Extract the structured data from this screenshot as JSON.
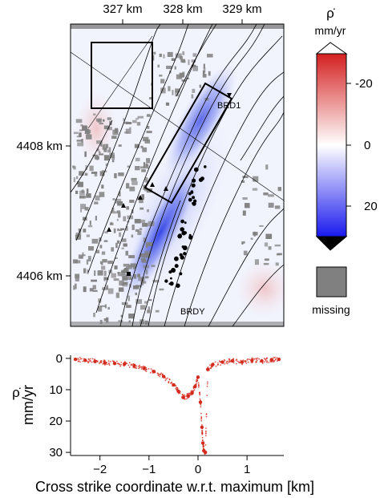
{
  "chart_data": [
    {
      "type": "heatmap",
      "title": "",
      "x_ticks": [
        "327 km",
        "328 km",
        "329 km"
      ],
      "y_ticks": [
        "4408 km",
        "4406 km"
      ],
      "annotations": [
        "BRD1",
        "BRDY"
      ],
      "colorbar": {
        "symbol": "ρ̇",
        "unit": "mm/yr",
        "ticks": [
          "-20",
          "0",
          "20"
        ],
        "range": [
          -28,
          28
        ],
        "colors": {
          "negative": "#d42020",
          "zero": "#ffffff",
          "positive": "#1a1aee"
        },
        "missing_label": "missing",
        "missing_color": "#808080"
      },
      "grid": false
    },
    {
      "type": "scatter",
      "title": "",
      "xlabel": "Cross strike coordinate w.r.t. maximum [km]",
      "ylabel": "mm/yr",
      "ylabel_symbol": "ρ̇",
      "xlim": [
        -2.6,
        1.75
      ],
      "ylim": [
        31,
        -1
      ],
      "x_ticks": [
        -2,
        -1,
        0,
        1
      ],
      "y_ticks": [
        0,
        10,
        20,
        30
      ],
      "color": "#d42a1e",
      "grid": false,
      "series": [
        {
          "x": [
            -2.5,
            -2.3,
            -2.1,
            -1.9,
            -1.7,
            -1.5,
            -1.3,
            -1.1,
            -0.9,
            -0.7,
            -0.5,
            -0.4,
            -0.3,
            -0.2,
            -0.12,
            -0.06,
            0.0,
            0.05,
            0.08,
            0.1,
            0.12,
            0.15,
            0.2,
            0.3,
            0.5,
            0.7,
            0.9,
            1.1,
            1.3,
            1.5,
            1.65
          ],
          "y": [
            0.3,
            0.6,
            1.0,
            1.4,
            1.6,
            1.8,
            2.3,
            3.2,
            4.2,
            5.8,
            8.5,
            10.5,
            12.5,
            12.0,
            11.0,
            9.0,
            6.0,
            14.0,
            22.0,
            27.0,
            29.5,
            30.0,
            3.5,
            2.0,
            1.2,
            0.8,
            1.2,
            0.6,
            0.8,
            0.4,
            0.3
          ]
        }
      ]
    }
  ]
}
